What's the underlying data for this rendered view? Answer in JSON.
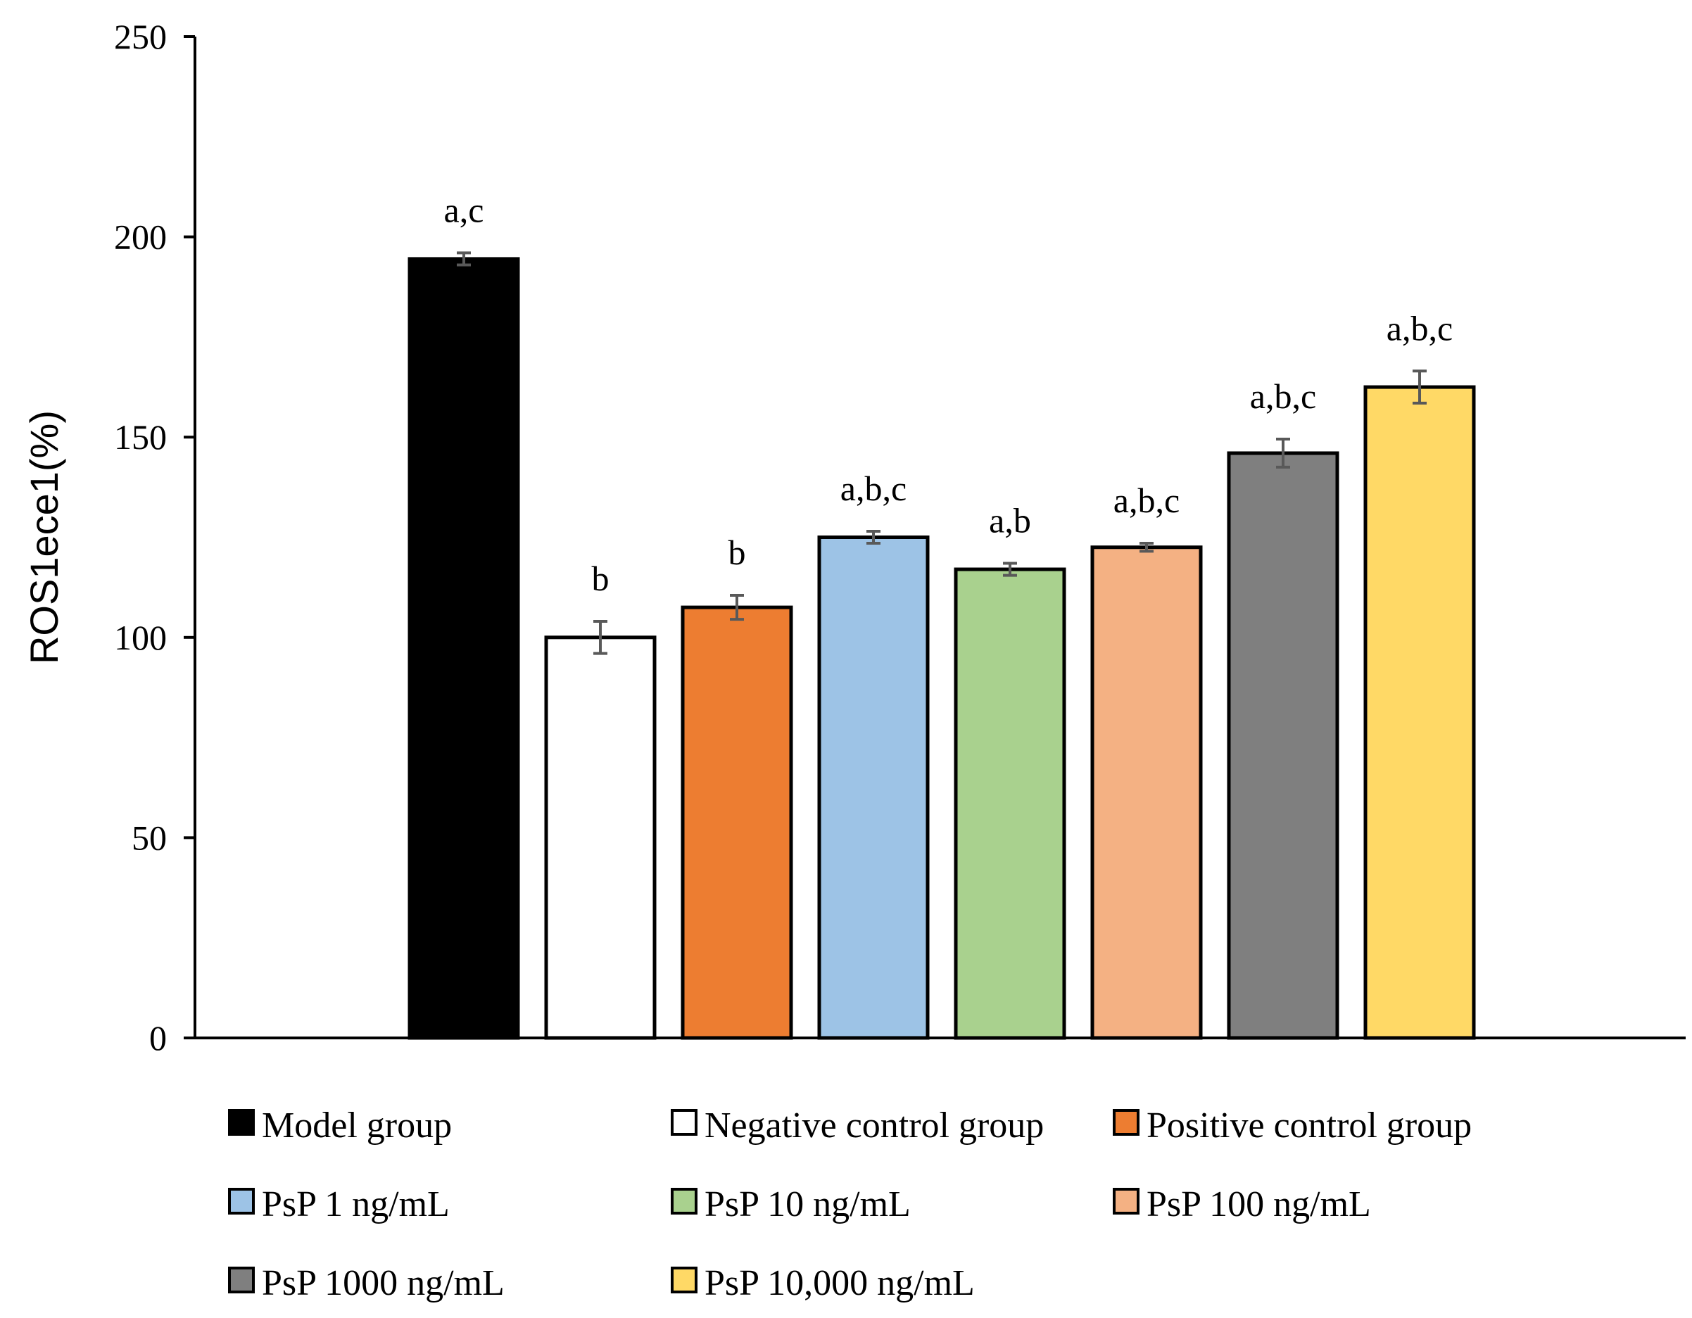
{
  "chart_data": {
    "type": "bar",
    "title": "",
    "xlabel": "",
    "ylabel": "ROS1ece1(%)",
    "ylim": [
      0,
      250
    ],
    "yticks": [
      0,
      50,
      100,
      150,
      200,
      250
    ],
    "grid": false,
    "legend_position": "bottom",
    "categories": [
      "Model group",
      "Negative control group",
      "Positive control group",
      "PsP 1 ng/mL",
      "PsP 10 ng/mL",
      "PsP 100 ng/mL",
      "PsP 1000 ng/mL",
      "PsP 10,000 ng/mL"
    ],
    "values": [
      194.5,
      100,
      107.5,
      125,
      117,
      122.5,
      146,
      162.5
    ],
    "errors": [
      1.5,
      4,
      3,
      1.5,
      1.5,
      1,
      3.5,
      4
    ],
    "significance_labels": [
      "a,c",
      "b",
      "b",
      "a,b,c",
      "a,b",
      "a,b,c",
      "a,b,c",
      "a,b,c"
    ],
    "colors": [
      "#000000",
      "#ffffff",
      "#ed7d31",
      "#9dc3e6",
      "#a9d18e",
      "#f4b183",
      "#7f7f7f",
      "#ffd966"
    ]
  }
}
